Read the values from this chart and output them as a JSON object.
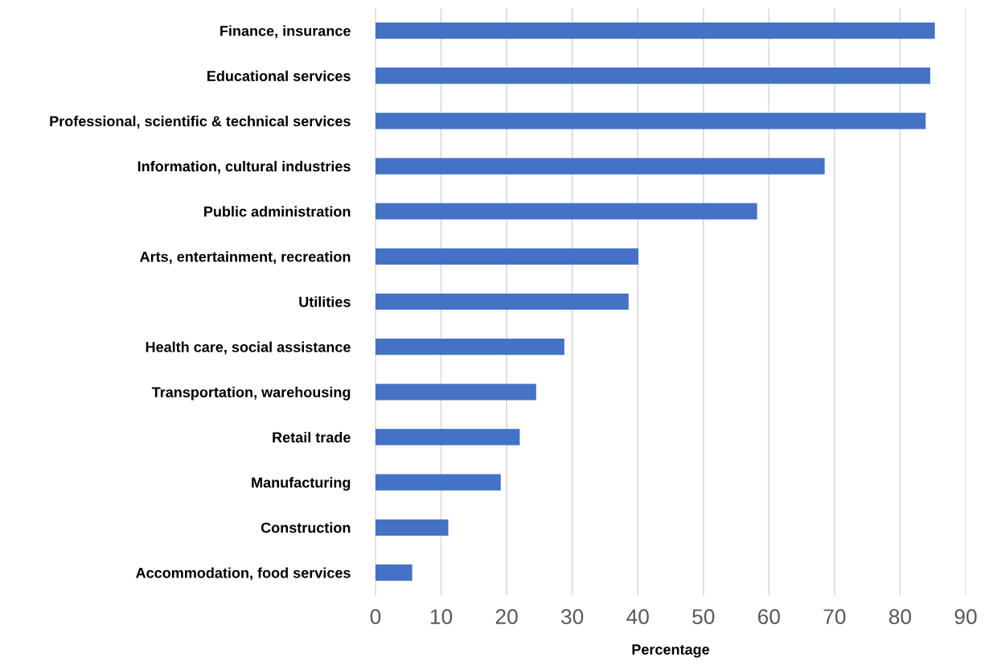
{
  "chart_data": {
    "type": "bar",
    "orientation": "horizontal",
    "xlabel": "Percentage",
    "categories": [
      "Finance, insurance",
      "Educational services",
      "Professional, scientific & technical services",
      "Information, cultural industries",
      "Public administration",
      "Arts, entertainment, recreation",
      "Utilities",
      "Health care, social assistance",
      "Transportation, warehousing",
      "Retail trade",
      "Manufacturing",
      "Construction",
      "Accommodation, food services"
    ],
    "values": [
      85.3,
      84.6,
      83.9,
      68.5,
      58.2,
      40.1,
      38.6,
      28.8,
      24.5,
      22.0,
      19.1,
      11.1,
      5.6
    ],
    "color": "#4472c4",
    "xlim": [
      0,
      90
    ],
    "xticks": [
      0,
      10,
      20,
      30,
      40,
      50,
      60,
      70,
      80,
      90
    ],
    "grid": "x"
  }
}
